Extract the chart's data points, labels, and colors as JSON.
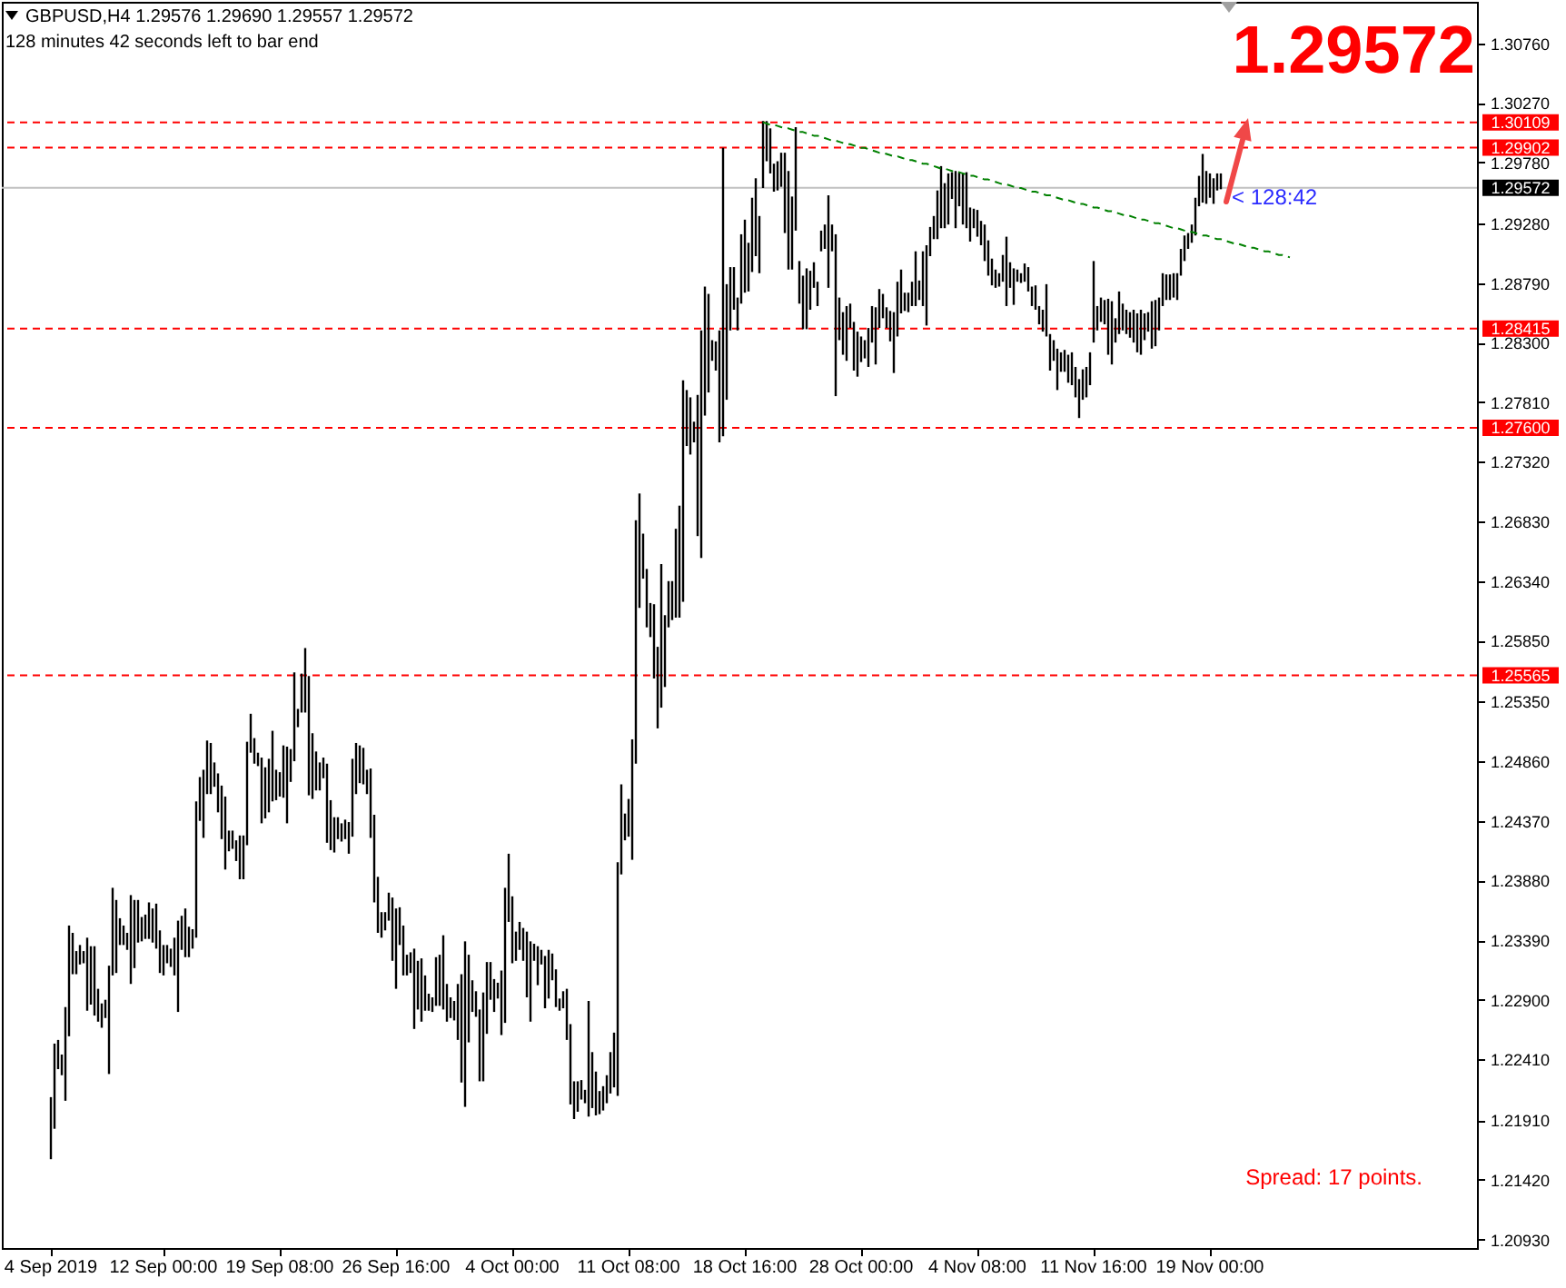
{
  "chart_data": {
    "type": "bar",
    "title": "GBPUSD,H4  1.29576 1.29690 1.29557 1.29572",
    "annotations": [
      "128 minutes 42 seconds left to bar end",
      "1.29572",
      {
        "text": "< 128:42",
        "y": 1.29572
      },
      "Spread: 17 points."
    ],
    "categories": [
      null,
      null,
      null,
      null,
      null,
      null,
      null,
      null,
      null,
      null,
      null,
      null,
      null,
      "4 Sep 2019",
      null,
      null,
      null,
      null,
      null,
      null,
      null,
      null,
      null,
      null,
      null,
      null,
      null,
      null,
      null,
      null,
      null,
      null,
      null,
      null,
      null,
      null,
      null,
      null,
      null,
      null,
      null,
      null,
      null,
      null,
      "12 Sep 00:00",
      null,
      null,
      null,
      null,
      null,
      null,
      null,
      null,
      null,
      null,
      null,
      null,
      null,
      null,
      null,
      null,
      null,
      null,
      null,
      null,
      null,
      null,
      null,
      null,
      null,
      null,
      null,
      null,
      null,
      null,
      null,
      "19 Sep 08:00",
      null,
      null,
      null,
      null,
      null,
      null,
      null,
      null,
      null,
      null,
      null,
      null,
      null,
      null,
      null,
      null,
      null,
      null,
      null,
      null,
      null,
      null,
      null,
      null,
      null,
      null,
      null,
      null,
      null,
      null,
      null,
      "26 Sep 16:00",
      null,
      null,
      null,
      null,
      null,
      null,
      null,
      null,
      null,
      null,
      null,
      null,
      null,
      null,
      null,
      null,
      null,
      null,
      null,
      null,
      null,
      null,
      null,
      null,
      null,
      null,
      null,
      null,
      null,
      null,
      null,
      "4 Oct 00:00",
      null,
      null,
      null,
      null,
      null,
      null,
      null,
      null,
      null,
      null,
      null,
      null,
      null,
      null,
      null,
      null,
      null,
      null,
      null,
      null,
      null,
      null,
      null,
      null,
      null,
      null,
      null,
      null,
      null,
      null,
      null,
      "11 Oct 08:00",
      null,
      null,
      null,
      null,
      null,
      null,
      null,
      null,
      null,
      null,
      null,
      null,
      null,
      null,
      null,
      null,
      null,
      null,
      null,
      null,
      null,
      null,
      null,
      null,
      null,
      null,
      null,
      null,
      null,
      null,
      null,
      "18 Oct 16:00",
      null,
      null,
      null,
      null,
      null,
      null,
      null,
      null,
      null,
      null,
      null,
      null,
      null,
      null,
      null,
      null,
      null,
      null,
      null,
      null,
      null,
      null,
      null,
      null,
      null,
      null,
      null,
      null,
      null,
      null,
      null,
      "28 Oct 00:00",
      null,
      null,
      null,
      null,
      null,
      null,
      null,
      null,
      null,
      null,
      null,
      null,
      null,
      null,
      null,
      null,
      null,
      null,
      null,
      null,
      null,
      null,
      null,
      null,
      null,
      null,
      null,
      null,
      null,
      null,
      null,
      "4 Nov 08:00",
      null,
      null,
      null,
      null,
      null,
      null,
      null,
      null,
      null,
      null,
      null,
      null,
      null,
      null,
      null,
      null,
      null,
      null,
      null,
      null,
      null,
      null,
      null,
      null,
      null,
      null,
      null,
      null,
      null,
      null,
      null,
      "11 Nov 16:00",
      null,
      null,
      null,
      null,
      null,
      null,
      null,
      null,
      null,
      null,
      null,
      null,
      null,
      null,
      null,
      null,
      null,
      null,
      null,
      null,
      null,
      null,
      null,
      null,
      null,
      null,
      null,
      null,
      null,
      null,
      null,
      "19 Nov 00:00",
      null,
      null,
      null,
      null,
      null,
      null,
      null,
      null,
      null,
      null,
      null,
      null,
      null,
      null,
      null,
      null,
      null,
      null,
      null,
      null,
      null,
      null,
      null,
      null,
      null,
      null,
      null,
      null,
      null,
      null,
      null,
      null,
      null,
      null,
      null,
      null,
      null,
      null,
      null,
      null,
      null,
      null,
      null,
      null,
      null,
      null,
      null,
      null,
      null,
      null,
      null,
      null,
      null,
      null,
      null,
      null,
      null,
      null,
      null,
      null,
      null,
      null,
      null,
      null,
      null,
      null,
      null,
      null,
      null,
      null,
      null,
      null,
      null
    ],
    "series": [
      {
        "color": "#000000",
        "base": [
          null,
          null,
          null,
          null,
          null,
          null,
          null,
          null,
          null,
          null,
          null,
          null,
          null,
          1.2159,
          1.2184,
          1.2233,
          1.2228,
          1.2207,
          1.226,
          1.2311,
          1.2311,
          1.2319,
          1.232,
          1.2281,
          1.2286,
          1.2277,
          1.2272,
          1.2267,
          1.2275,
          1.2229,
          1.231,
          1.2312,
          1.2335,
          1.2335,
          1.2331,
          1.2303,
          1.2316,
          1.2337,
          1.2338,
          1.234,
          1.234,
          1.2337,
          1.2332,
          1.2312,
          1.231,
          1.232,
          1.2317,
          1.231,
          1.228,
          1.2331,
          1.2325,
          1.2325,
          1.2332,
          1.2341,
          1.2437,
          1.2423,
          1.2459,
          1.2459,
          1.2465,
          1.2444,
          1.2422,
          1.2397,
          1.2412,
          1.2414,
          1.2404,
          1.2389,
          1.2389,
          1.2417,
          1.2493,
          1.2484,
          1.2482,
          1.2435,
          1.2439,
          1.2444,
          1.2453,
          1.2454,
          1.2457,
          1.2456,
          1.2435,
          1.2469,
          1.2486,
          1.2514,
          1.2526,
          1.2526,
          1.2458,
          1.2455,
          1.2462,
          1.2462,
          1.2472,
          1.2419,
          1.2413,
          1.2411,
          1.2422,
          1.242,
          1.2422,
          1.241,
          1.2424,
          1.2459,
          1.2468,
          1.2467,
          1.2459,
          1.2423,
          1.237,
          1.2345,
          1.2341,
          1.2347,
          1.2355,
          1.2322,
          1.2299,
          1.2335,
          1.231,
          1.231,
          1.2312,
          1.2266,
          1.2282,
          1.2272,
          1.2281,
          1.2281,
          1.228,
          1.2285,
          1.2285,
          1.2282,
          1.2272,
          1.2275,
          1.2273,
          1.2257,
          1.2222,
          1.2202,
          1.2255,
          1.228,
          1.2276,
          1.2223,
          1.2223,
          1.2262,
          1.229,
          1.228,
          1.2291,
          1.2261,
          1.2271,
          1.2354,
          1.232,
          1.2322,
          1.2331,
          1.2322,
          1.2292,
          1.2272,
          1.2322,
          1.2302,
          1.2319,
          1.2283,
          1.2291,
          1.2306,
          1.2284,
          1.2281,
          1.2283,
          1.2257,
          1.2204,
          1.2192,
          1.2198,
          1.2208,
          1.2205,
          1.2194,
          1.2201,
          1.2195,
          1.2196,
          1.2199,
          1.2205,
          1.2213,
          1.2218,
          1.2211,
          1.2393,
          1.2421,
          1.2424,
          1.2405,
          1.2484,
          1.2612,
          1.2636,
          1.2596,
          1.2588,
          1.2554,
          1.2513,
          1.253,
          1.2547,
          1.2596,
          1.2602,
          1.2604,
          1.2604,
          1.2617,
          1.2745,
          1.2738,
          1.2748,
          1.2671,
          1.2653,
          1.277,
          1.2789,
          1.2815,
          1.2807,
          1.2748,
          1.2753,
          1.2783,
          1.284,
          1.2857,
          1.284,
          1.2862,
          1.2871,
          1.2872,
          1.2888,
          1.2901,
          1.2887,
          1.2957,
          1.2979,
          1.2969,
          1.2954,
          1.2955,
          1.2958,
          1.292,
          1.289,
          1.289,
          1.2922,
          1.2862,
          1.2841,
          1.2841,
          1.2857,
          1.2875,
          1.286,
          1.2905,
          1.2907,
          1.2875,
          1.2905,
          1.2786,
          1.2832,
          1.282,
          1.2815,
          1.2842,
          1.2807,
          1.2802,
          1.2814,
          1.2817,
          1.281,
          1.283,
          1.2812,
          1.2842,
          1.285,
          1.2842,
          1.2831,
          1.2805,
          1.2835,
          1.2854,
          1.2856,
          1.2855,
          1.286,
          1.286,
          1.2865,
          1.286,
          1.2844,
          1.2901,
          1.2915,
          1.2915,
          1.2924,
          1.2924,
          1.2927,
          1.2948,
          1.2924,
          1.2942,
          1.2927,
          1.2924,
          1.2913,
          1.2924,
          1.2917,
          1.291,
          1.2897,
          1.2885,
          1.2877,
          1.2875,
          1.2876,
          1.288,
          1.286,
          1.2875,
          1.2861,
          1.288,
          1.2879,
          1.288,
          1.2872,
          1.286,
          1.2857,
          1.2845,
          1.2839,
          1.2835,
          1.2807,
          1.2815,
          1.2791,
          1.2806,
          1.2806,
          1.2797,
          1.2795,
          1.2785,
          1.2768,
          1.2783,
          1.2785,
          1.2795,
          1.283,
          1.284,
          1.2847,
          1.2845,
          1.282,
          1.2812,
          1.283,
          1.2837,
          1.284,
          1.2837,
          1.2834,
          1.283,
          1.2822,
          1.282,
          1.2832,
          1.2839,
          1.2825,
          1.2827,
          1.284,
          1.286,
          1.2865,
          1.2865,
          1.2867,
          1.2865,
          1.2885,
          1.2897,
          1.2907,
          1.2912,
          1.2918,
          1.2942,
          1.2945,
          1.2944,
          1.2949,
          1.2944,
          1.2955,
          1.2956,
          null,
          null,
          null,
          null,
          null,
          null,
          null,
          null,
          null,
          null,
          null,
          null,
          null,
          null,
          null,
          null,
          null,
          null,
          null,
          null,
          null,
          null,
          null,
          null,
          null,
          null,
          null,
          null,
          null,
          null,
          null,
          null,
          null,
          null,
          null,
          null,
          null,
          null,
          null,
          null,
          null,
          null,
          null,
          null,
          null,
          null,
          null,
          null,
          null,
          null,
          null,
          null,
          null,
          null,
          null,
          null,
          null,
          null,
          null,
          null,
          null,
          null,
          null,
          null,
          null,
          null,
          null,
          null,
          null,
          null
        ],
        "values": [
          null,
          null,
          null,
          null,
          null,
          null,
          null,
          null,
          null,
          null,
          null,
          null,
          null,
          0.0051,
          0.007,
          0.0024,
          0.0017,
          0.0077,
          0.0091,
          0.0034,
          0.0019,
          0.0016,
          0.001,
          0.006,
          0.0048,
          0.0057,
          0.0027,
          0.002,
          0.0015,
          0.0089,
          0.0072,
          0.006,
          0.0022,
          0.0016,
          0.0014,
          0.0073,
          0.0056,
          0.0035,
          0.002,
          0.002,
          0.003,
          0.0028,
          0.0037,
          0.0035,
          0.0025,
          0.0015,
          0.0015,
          0.0031,
          0.0075,
          0.0028,
          0.004,
          0.0025,
          0.0016,
          0.0112,
          0.0036,
          0.0056,
          0.0044,
          0.0042,
          0.002,
          0.0032,
          0.0044,
          0.006,
          0.0017,
          0.0015,
          0.0017,
          0.0036,
          0.0036,
          0.0085,
          0.0032,
          0.0021,
          0.0011,
          0.0054,
          0.0042,
          0.0044,
          0.0058,
          0.0025,
          0.002,
          0.0043,
          0.0063,
          0.0027,
          0.0073,
          0.0015,
          0.0032,
          0.0053,
          0.0098,
          0.0054,
          0.0032,
          0.0023,
          0.0017,
          0.0065,
          0.0041,
          0.0029,
          0.0018,
          0.0015,
          0.0016,
          0.0026,
          0.0064,
          0.0042,
          0.0031,
          0.003,
          0.002,
          0.0057,
          0.0072,
          0.0046,
          0.0021,
          0.0015,
          0.0023,
          0.0052,
          0.0066,
          0.0031,
          0.0041,
          0.0017,
          0.0017,
          0.0066,
          0.004,
          0.0052,
          0.0029,
          0.0014,
          0.0012,
          0.004,
          0.0042,
          0.0061,
          0.0031,
          0.0017,
          0.0016,
          0.0046,
          0.0089,
          0.0136,
          0.0072,
          0.0026,
          0.0021,
          0.0059,
          0.0073,
          0.0059,
          0.0031,
          0.0027,
          0.0013,
          0.0053,
          0.0111,
          0.0056,
          0.0055,
          0.0024,
          0.0023,
          0.0027,
          0.0054,
          0.0066,
          0.0014,
          0.0032,
          0.0012,
          0.0043,
          0.004,
          0.0022,
          0.0031,
          0.001,
          0.0014,
          0.0042,
          0.0066,
          0.0031,
          0.0025,
          0.0016,
          0.0011,
          0.0095,
          0.0046,
          0.0036,
          0.0019,
          0.002,
          0.0023,
          0.0034,
          0.0045,
          0.0192,
          0.0074,
          0.0022,
          0.0031,
          0.0099,
          0.02,
          0.0094,
          0.0037,
          0.0048,
          0.0028,
          0.0061,
          0.0067,
          0.0118,
          0.0059,
          0.0038,
          0.0032,
          0.0073,
          0.0092,
          0.0182,
          0.0046,
          0.0047,
          0.0017,
          0.0116,
          0.0187,
          0.0106,
          0.0081,
          0.0017,
          0.0024,
          0.0092,
          0.0237,
          0.0095,
          0.0052,
          0.0035,
          0.0027,
          0.0057,
          0.006,
          0.004,
          0.0061,
          0.0064,
          0.0047,
          0.0055,
          0.0033,
          0.0037,
          0.0023,
          0.0024,
          0.0028,
          0.0066,
          0.0081,
          0.006,
          0.0085,
          0.0035,
          0.0044,
          0.005,
          0.0032,
          0.0021,
          0.002,
          0.0017,
          0.002,
          0.0076,
          0.0022,
          0.0133,
          0.0035,
          0.0035,
          0.0045,
          0.002,
          0.004,
          0.0037,
          0.0021,
          0.0015,
          0.0032,
          0.003,
          0.0047,
          0.0032,
          0.002,
          0.0017,
          0.0025,
          0.005,
          0.0045,
          0.0036,
          0.0015,
          0.0016,
          0.002,
          0.0045,
          0.0016,
          0.0045,
          0.0066,
          0.0024,
          0.0019,
          0.004,
          0.0051,
          0.0037,
          0.0042,
          0.0022,
          0.0047,
          0.0028,
          0.0042,
          0.0046,
          0.0028,
          0.0016,
          0.0022,
          0.002,
          0.003,
          0.0029,
          0.0022,
          0.0015,
          0.0011,
          0.0022,
          0.0057,
          0.0021,
          0.003,
          0.001,
          0.0008,
          0.0015,
          0.002,
          0.0016,
          0.002,
          0.0015,
          0.0018,
          0.0043,
          0.003,
          0.0017,
          0.0034,
          0.0016,
          0.0018,
          0.0023,
          0.0027,
          0.0025,
          0.0032,
          0.0025,
          0.0025,
          0.0027,
          0.0067,
          0.002,
          0.002,
          0.002,
          0.0046,
          0.0052,
          0.002,
          0.0035,
          0.0022,
          0.002,
          0.0021,
          0.0027,
          0.0032,
          0.0037,
          0.0022,
          0.0016,
          0.0039,
          0.0038,
          0.0027,
          0.0027,
          0.0021,
          0.0021,
          0.002,
          0.0022,
          0.0022,
          0.0021,
          0.0013,
          0.0015,
          0.0031,
          0.0025,
          0.004,
          0.0027,
          0.002,
          0.0021,
          0.0014,
          0.0013,
          null,
          null,
          null,
          null,
          null,
          null,
          null,
          null,
          null,
          null,
          null,
          null,
          null,
          null,
          null,
          null,
          null,
          null,
          null,
          null,
          null,
          null,
          null,
          null,
          null,
          null,
          null,
          null,
          null,
          null,
          null,
          null,
          null,
          null,
          null,
          null,
          null,
          null,
          null,
          null,
          null,
          null,
          null,
          null,
          null,
          null,
          null,
          null,
          null,
          null,
          null,
          null,
          null,
          null,
          null,
          null,
          null,
          null,
          null,
          null,
          null,
          null,
          null,
          null,
          null,
          null,
          null,
          null,
          null,
          null
        ]
      },
      {
        "type": "line",
        "color": "#008000",
        "line_style": "dashed",
        "values": [
          null,
          null,
          null,
          null,
          null,
          null,
          null,
          null,
          null,
          null,
          null,
          null,
          null,
          null,
          null,
          null,
          null,
          null,
          null,
          null,
          null,
          null,
          null,
          null,
          null,
          null,
          null,
          null,
          null,
          null,
          null,
          null,
          null,
          null,
          null,
          null,
          null,
          null,
          null,
          null,
          null,
          null,
          null,
          null,
          null,
          null,
          null,
          null,
          null,
          null,
          null,
          null,
          null,
          null,
          null,
          null,
          null,
          null,
          null,
          null,
          null,
          null,
          null,
          null,
          null,
          null,
          null,
          null,
          null,
          null,
          null,
          null,
          null,
          null,
          null,
          null,
          null,
          null,
          null,
          null,
          null,
          null,
          null,
          null,
          null,
          null,
          null,
          null,
          null,
          null,
          null,
          null,
          null,
          null,
          null,
          null,
          null,
          null,
          null,
          null,
          null,
          null,
          null,
          null,
          null,
          null,
          null,
          null,
          null,
          null,
          null,
          null,
          null,
          null,
          null,
          null,
          null,
          null,
          null,
          null,
          null,
          null,
          null,
          null,
          null,
          null,
          null,
          null,
          null,
          null,
          null,
          null,
          null,
          null,
          null,
          null,
          null,
          null,
          null,
          null,
          null,
          null,
          null,
          null,
          null,
          null,
          null,
          null,
          null,
          null,
          null,
          null,
          null,
          null,
          null,
          null,
          null,
          null,
          null,
          null,
          null,
          null,
          null,
          null,
          null,
          null,
          null,
          null,
          null,
          null,
          null,
          null,
          null,
          null,
          null,
          null,
          null,
          null,
          null,
          null,
          null,
          null,
          null,
          null,
          null,
          null,
          null,
          null,
          null,
          null,
          null,
          null,
          null,
          null,
          null,
          null,
          null,
          null,
          null,
          null,
          null,
          null,
          null,
          null,
          null,
          null,
          null,
          null,
          null,
          1.3011,
          1.301,
          1.3009,
          1.3009,
          1.3008,
          1.3007,
          1.3006,
          1.3006,
          1.3005,
          1.3004,
          1.3003,
          1.3003,
          1.3002,
          1.3001,
          1.3,
          1.3,
          1.2999,
          1.2998,
          1.2997,
          1.2996,
          1.2996,
          1.2995,
          1.2994,
          1.2993,
          1.2993,
          1.2992,
          1.2991,
          1.299,
          1.299,
          1.2989,
          1.2988,
          1.2987,
          1.2986,
          1.2986,
          1.2985,
          1.2984,
          1.2983,
          1.2983,
          1.2982,
          1.2981,
          1.298,
          1.298,
          1.2979,
          1.2978,
          1.2977,
          1.2977,
          1.2976,
          1.2975,
          1.2974,
          1.2973,
          1.2973,
          1.2972,
          1.2971,
          1.297,
          1.297,
          1.2969,
          1.2968,
          1.2967,
          1.2967,
          1.2966,
          1.2965,
          1.2964,
          1.2964,
          1.2963,
          1.2962,
          1.2961,
          1.296,
          1.296,
          1.2959,
          1.2958,
          1.2957,
          1.2957,
          1.2956,
          1.2955,
          1.2954,
          1.2954,
          1.2953,
          1.2952,
          1.2951,
          1.2951,
          1.295,
          1.2949,
          1.2948,
          1.2947,
          1.2947,
          1.2946,
          1.2945,
          1.2944,
          1.2944,
          1.2943,
          1.2942,
          1.2941,
          1.2941,
          1.294,
          1.2939,
          1.2938,
          1.2938,
          1.2937,
          1.2936,
          1.2935,
          1.2934,
          1.2934,
          1.2933,
          1.2932,
          1.2931,
          1.2931,
          1.293,
          1.2929,
          1.2928,
          1.2928,
          1.2927,
          1.2926,
          1.2925,
          1.2924,
          1.2924,
          1.2923,
          1.2922,
          1.2921,
          1.2921,
          1.292,
          1.2919,
          1.2918,
          1.2918,
          1.2917,
          1.2916,
          1.2915,
          1.2915,
          1.2914,
          1.2913,
          1.2912,
          1.2911,
          1.2911,
          1.291,
          1.2909,
          1.2908,
          1.2908,
          1.2907,
          1.2906,
          1.2905,
          1.2905,
          1.2904,
          1.2903,
          1.2902,
          1.2902,
          1.2901,
          1.29,
          null,
          null,
          null,
          null,
          null,
          null,
          null,
          null,
          null,
          null,
          null,
          null,
          null,
          null,
          null,
          null,
          null,
          null,
          null,
          null,
          null,
          null,
          null,
          null,
          null,
          null,
          null,
          null,
          null,
          null,
          null,
          null,
          null,
          null,
          null,
          null,
          null,
          null,
          null,
          null,
          null,
          null,
          null,
          null,
          null,
          null,
          null,
          null,
          null,
          null,
          null
        ]
      }
    ],
    "ylim": [
      1.2086,
      1.311
    ],
    "yticks": [
      {
        "value": 1.3076,
        "label": "1.30760"
      },
      {
        "value": 1.3027,
        "label": "1.30270"
      },
      {
        "value": 1.2978,
        "label": "1.29780"
      },
      {
        "value": 1.2928,
        "label": "1.29280"
      },
      {
        "value": 1.2879,
        "label": "1.28790"
      },
      {
        "value": 1.283,
        "label": "1.28300"
      },
      {
        "value": 1.2781,
        "label": "1.27810"
      },
      {
        "value": 1.2732,
        "label": "1.27320"
      },
      {
        "value": 1.2683,
        "label": "1.26830"
      },
      {
        "value": 1.2634,
        "label": "1.26340"
      },
      {
        "value": 1.2585,
        "label": "1.25850"
      },
      {
        "value": 1.2535,
        "label": "1.25350"
      },
      {
        "value": 1.2486,
        "label": "1.24860"
      },
      {
        "value": 1.2437,
        "label": "1.24370"
      },
      {
        "value": 1.2388,
        "label": "1.23880"
      },
      {
        "value": 1.2339,
        "label": "1.23390"
      },
      {
        "value": 1.229,
        "label": "1.22900"
      },
      {
        "value": 1.2241,
        "label": "1.22410"
      },
      {
        "value": 1.2191,
        "label": "1.21910"
      },
      {
        "value": 1.2142,
        "label": "1.21420"
      },
      {
        "value": 1.2093,
        "label": "1.20930"
      }
    ],
    "ref_lines": [
      {
        "axis": "y",
        "value": 1.30109,
        "label": "1.30109",
        "color": "#ff0000",
        "line_style": "dashed"
      },
      {
        "axis": "y",
        "value": 1.29902,
        "label": "1.29902",
        "color": "#ff0000",
        "line_style": "dashed"
      },
      {
        "axis": "y",
        "value": 1.29572,
        "label": "1.29572",
        "color": "#c0c0c0",
        "line_style": "solid"
      },
      {
        "axis": "y",
        "value": 1.28415,
        "label": "1.28415",
        "color": "#ff0000",
        "line_style": "dashed"
      },
      {
        "axis": "y",
        "value": 1.276,
        "label": "1.27600",
        "color": "#ff0000",
        "line_style": "dashed"
      },
      {
        "axis": "y",
        "value": 1.25565,
        "label": "1.25565",
        "color": "#ff0000",
        "line_style": "dashed"
      }
    ]
  }
}
